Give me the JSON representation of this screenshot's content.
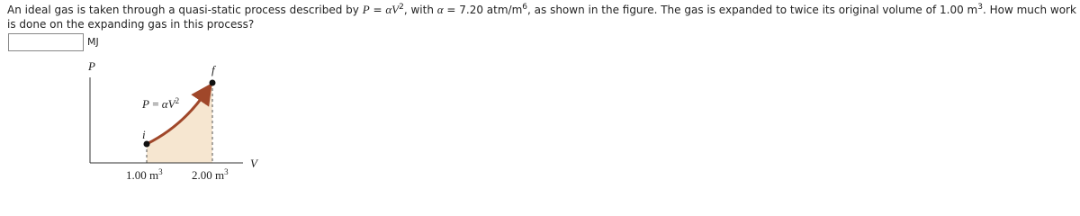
{
  "question": {
    "text": [
      "An ideal gas is taken through a quasi-static process described by ",
      "P",
      " = ",
      "α",
      "V",
      "2",
      ", with ",
      "α",
      " = 7.20 atm/m",
      "6",
      ", as shown in the figure. The gas is expanded to twice its original volume of 1.00 m",
      "3",
      ". How much work is done on the expanding gas in this process?"
    ]
  },
  "answer": {
    "unit": "MJ"
  },
  "figure": {
    "y_axis_label": "P",
    "x_axis_label": "V",
    "equation": [
      "P",
      " = ",
      "α",
      "V",
      "2"
    ],
    "initial_label": "i",
    "final_label": "f",
    "x_labels": [
      [
        "1.00 m",
        "3"
      ],
      [
        "2.00 m",
        "3"
      ]
    ]
  }
}
